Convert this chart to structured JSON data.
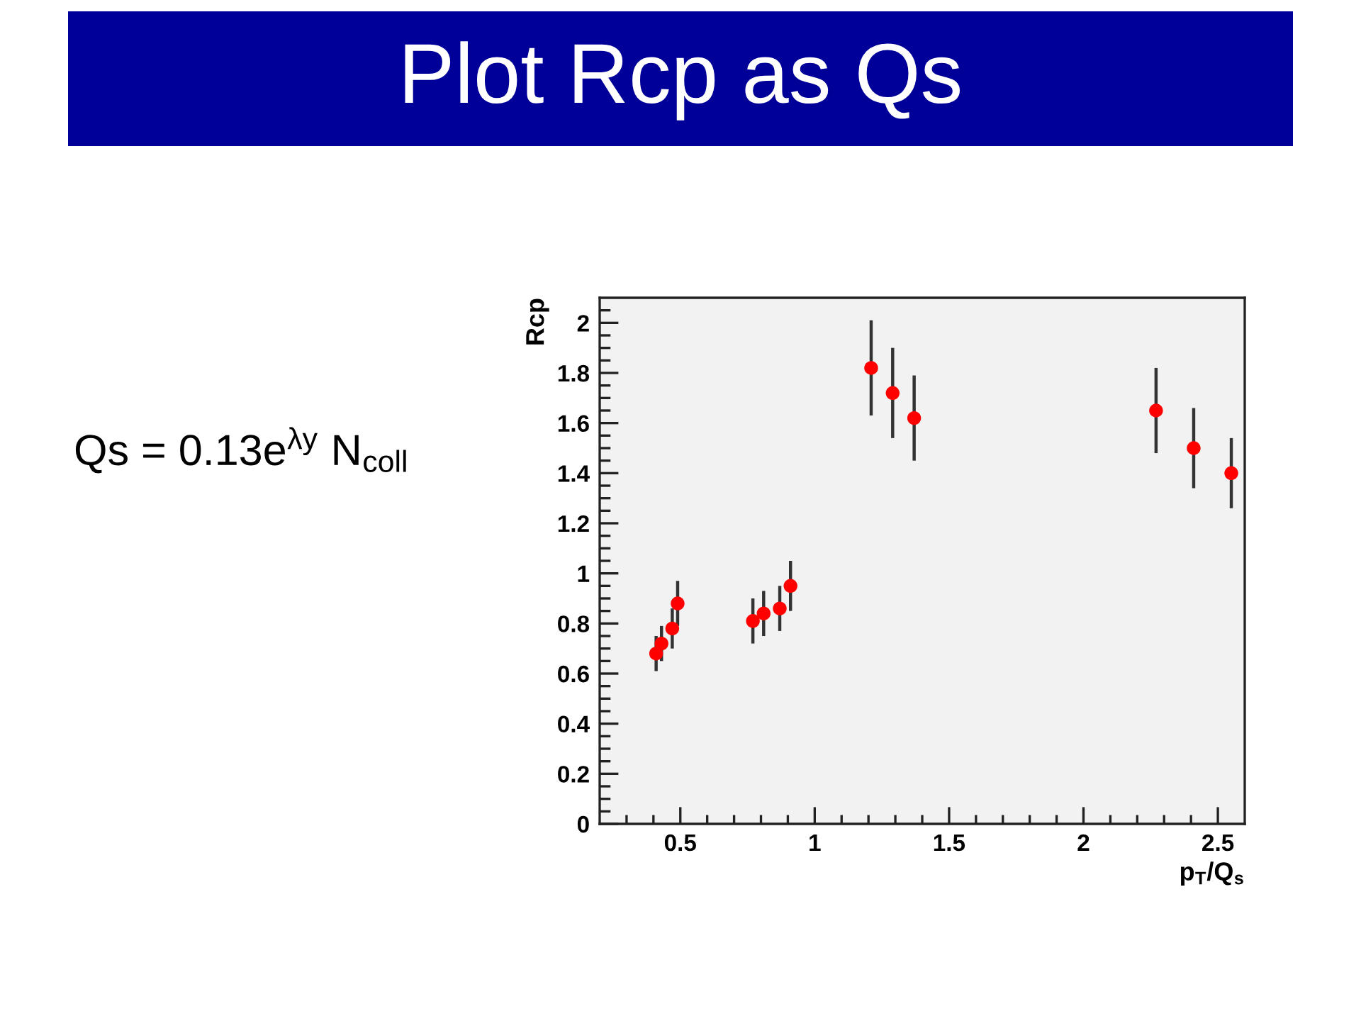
{
  "chart_data": {
    "type": "scatter",
    "title": "Plot Rcp as Qs",
    "xlabel": "p$_{T}$/Q$_{s}$",
    "ylabel": "Rcp",
    "annotations": [
      "Qs = 0.13e$^{λy}$ N$_{coll}$"
    ],
    "x": [
      0.41,
      0.43,
      0.47,
      0.49,
      0.77,
      0.81,
      0.87,
      0.91,
      1.21,
      1.29,
      1.37,
      2.27,
      2.41,
      2.55
    ],
    "series": [
      {
        "color": "#ff0000",
        "values": [
          0.68,
          0.72,
          0.78,
          0.88,
          0.81,
          0.84,
          0.86,
          0.95,
          1.82,
          1.72,
          1.62,
          1.65,
          1.5,
          1.4
        ],
        "errors": [
          0.07,
          0.07,
          0.08,
          0.09,
          0.09,
          0.09,
          0.09,
          0.1,
          0.19,
          0.18,
          0.17,
          0.17,
          0.16,
          0.14
        ]
      }
    ],
    "xlim": [
      0.2,
      2.6
    ],
    "ylim": [
      0,
      2.1
    ],
    "xticks": [
      {
        "value": 0.3,
        "label": null
      },
      {
        "value": 0.4,
        "label": null
      },
      0.5,
      {
        "value": 0.6,
        "label": null
      },
      {
        "value": 0.7,
        "label": null
      },
      {
        "value": 0.8,
        "label": null
      },
      {
        "value": 0.9,
        "label": null
      },
      1,
      {
        "value": 1.1,
        "label": null
      },
      {
        "value": 1.2,
        "label": null
      },
      {
        "value": 1.3,
        "label": null
      },
      {
        "value": 1.4,
        "label": null
      },
      1.5,
      {
        "value": 1.6,
        "label": null
      },
      {
        "value": 1.7,
        "label": null
      },
      {
        "value": 1.8,
        "label": null
      },
      {
        "value": 1.9,
        "label": null
      },
      2,
      {
        "value": 2.1,
        "label": null
      },
      {
        "value": 2.2,
        "label": null
      },
      {
        "value": 2.3,
        "label": null
      },
      {
        "value": 2.4,
        "label": null
      },
      2.5
    ],
    "yticks": [
      0,
      {
        "value": 0.05,
        "label": null
      },
      {
        "value": 0.1,
        "label": null
      },
      {
        "value": 0.15,
        "label": null
      },
      0.2,
      {
        "value": 0.25,
        "label": null
      },
      {
        "value": 0.3,
        "label": null
      },
      {
        "value": 0.35,
        "label": null
      },
      0.4,
      {
        "value": 0.45,
        "label": null
      },
      {
        "value": 0.5,
        "label": null
      },
      {
        "value": 0.55,
        "label": null
      },
      0.6,
      {
        "value": 0.65,
        "label": null
      },
      {
        "value": 0.7,
        "label": null
      },
      {
        "value": 0.75,
        "label": null
      },
      0.8,
      {
        "value": 0.85,
        "label": null
      },
      {
        "value": 0.9,
        "label": null
      },
      {
        "value": 0.95,
        "label": null
      },
      1,
      {
        "value": 1.05,
        "label": null
      },
      {
        "value": 1.1,
        "label": null
      },
      {
        "value": 1.15,
        "label": null
      },
      1.2,
      {
        "value": 1.25,
        "label": null
      },
      {
        "value": 1.3,
        "label": null
      },
      {
        "value": 1.35,
        "label": null
      },
      1.4,
      {
        "value": 1.45,
        "label": null
      },
      {
        "value": 1.5,
        "label": null
      },
      {
        "value": 1.55,
        "label": null
      },
      1.6,
      {
        "value": 1.65,
        "label": null
      },
      {
        "value": 1.7,
        "label": null
      },
      {
        "value": 1.75,
        "label": null
      },
      1.8,
      {
        "value": 1.85,
        "label": null
      },
      {
        "value": 1.9,
        "label": null
      },
      {
        "value": 1.95,
        "label": null
      },
      2,
      {
        "value": 2.05,
        "label": null
      }
    ],
    "marker": "circle"
  }
}
